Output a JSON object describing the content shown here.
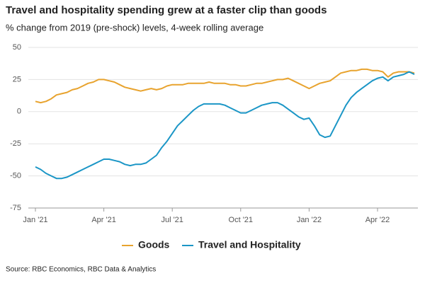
{
  "chart_data": {
    "type": "line",
    "title": "Travel and hospitality spending grew at a faster clip than goods",
    "subtitle": "% change from 2019 (pre-shock) levels, 4-week rolling average",
    "source": "Source: RBC Economics, RBC Data & Analytics",
    "categories": [
      "Jan '21",
      null,
      null,
      null,
      null,
      null,
      null,
      null,
      null,
      null,
      null,
      null,
      null,
      "Apr '21",
      null,
      null,
      null,
      null,
      null,
      null,
      null,
      null,
      null,
      null,
      null,
      null,
      "Jul '21",
      null,
      null,
      null,
      null,
      null,
      null,
      null,
      null,
      null,
      null,
      null,
      null,
      "Oct '21",
      null,
      null,
      null,
      null,
      null,
      null,
      null,
      null,
      null,
      null,
      null,
      null,
      "Jan '22",
      null,
      null,
      null,
      null,
      null,
      null,
      null,
      null,
      null,
      null,
      null,
      null,
      "Apr '22",
      null,
      null,
      null,
      null,
      null,
      null,
      null
    ],
    "series": [
      {
        "name": "Goods",
        "color": "#e8a32e",
        "values": [
          8,
          7,
          8,
          10,
          13,
          14,
          15,
          17,
          18,
          20,
          22,
          23,
          25,
          25,
          24,
          23,
          21,
          19,
          18,
          17,
          16,
          17,
          18,
          17,
          18,
          20,
          21,
          21,
          21,
          22,
          22,
          22,
          22,
          23,
          22,
          22,
          22,
          21,
          21,
          20,
          20,
          21,
          22,
          22,
          23,
          24,
          25,
          25,
          26,
          24,
          22,
          20,
          18,
          20,
          22,
          23,
          24,
          27,
          30,
          31,
          32,
          32,
          33,
          33,
          32,
          32,
          31,
          27,
          30,
          31,
          31,
          31,
          30
        ]
      },
      {
        "name": "Travel and Hospitality",
        "color": "#1b96c6",
        "values": [
          -43,
          -45,
          -48,
          -50,
          -52,
          -52,
          -51,
          -49,
          -47,
          -45,
          -43,
          -41,
          -39,
          -37,
          -37,
          -38,
          -39,
          -41,
          -42,
          -41,
          -41,
          -40,
          -37,
          -34,
          -28,
          -23,
          -17,
          -11,
          -7,
          -3,
          1,
          4,
          6,
          6,
          6,
          6,
          5,
          3,
          1,
          -1,
          -1,
          1,
          3,
          5,
          6,
          7,
          7,
          5,
          2,
          -1,
          -4,
          -6,
          -5,
          -11,
          -18,
          -20,
          -19,
          -11,
          -3,
          5,
          11,
          15,
          18,
          21,
          24,
          26,
          27,
          24,
          27,
          28,
          29,
          31,
          29
        ]
      }
    ],
    "ylim": [
      -75,
      50
    ],
    "yticks": [
      -75,
      -50,
      -25,
      0,
      25,
      50
    ],
    "grid": true,
    "legend": "bottom"
  }
}
